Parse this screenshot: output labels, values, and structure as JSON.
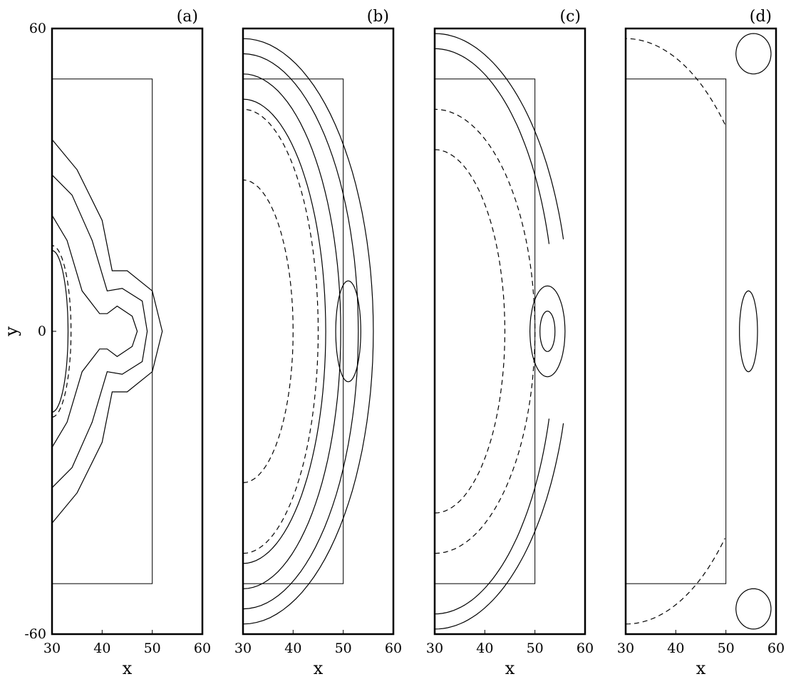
{
  "chart_data": [
    {
      "type": "contour",
      "panel_label": "(a)",
      "xlabel": "x",
      "ylabel": "y",
      "xlim": [
        30,
        60
      ],
      "ylim": [
        -60,
        60
      ],
      "xticks": [
        "30",
        "40",
        "50",
        "60"
      ],
      "yticks": [
        "-60",
        "0",
        "60"
      ],
      "rectangle": {
        "x": [
          30,
          50
        ],
        "y": [
          -50,
          50
        ]
      },
      "description_marks": [
        "solid contours",
        "dashed contours"
      ]
    },
    {
      "type": "contour",
      "panel_label": "(b)",
      "xlabel": "x",
      "xlim": [
        30,
        60
      ],
      "ylim": [
        -60,
        60
      ],
      "xticks": [
        "30",
        "40",
        "50",
        "60"
      ],
      "rectangle": {
        "x": [
          30,
          50
        ],
        "y": [
          -50,
          50
        ]
      }
    },
    {
      "type": "contour",
      "panel_label": "(c)",
      "xlabel": "x",
      "xlim": [
        30,
        60
      ],
      "ylim": [
        -60,
        60
      ],
      "xticks": [
        "30",
        "40",
        "50",
        "60"
      ],
      "rectangle": {
        "x": [
          30,
          50
        ],
        "y": [
          -50,
          50
        ]
      }
    },
    {
      "type": "contour",
      "panel_label": "(d)",
      "xlabel": "x",
      "xlim": [
        30,
        60
      ],
      "ylim": [
        -60,
        60
      ],
      "xticks": [
        "30",
        "40",
        "50",
        "60"
      ],
      "rectangle": {
        "x": [
          30,
          50
        ],
        "y": [
          -50,
          50
        ]
      }
    }
  ]
}
